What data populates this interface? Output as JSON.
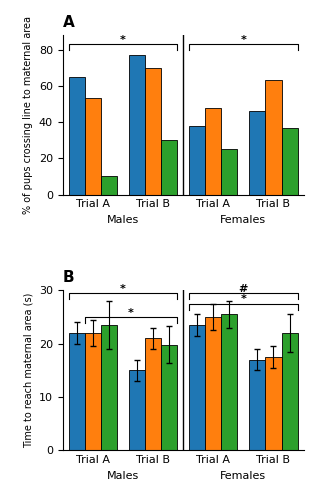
{
  "chart_data": [
    {
      "type": "bar",
      "title": "A",
      "ylabel": "% of pups crossing line to maternal area",
      "categories": [
        "Trial A",
        "Trial B",
        "Trial A",
        "Trial B"
      ],
      "series": [
        {
          "values": [
            65,
            77,
            38,
            46
          ]
        },
        {
          "values": [
            53,
            70,
            48,
            63
          ]
        },
        {
          "values": [
            10,
            30,
            25,
            37
          ]
        }
      ],
      "ylim": [
        0,
        88
      ],
      "yticks": [
        0,
        20,
        40,
        60,
        80
      ],
      "sections": [
        {
          "text": "Males",
          "categories": [
            0,
            1
          ]
        },
        {
          "text": "Females",
          "categories": [
            2,
            3
          ]
        }
      ],
      "brackets": [
        {
          "text": "*",
          "start": [
            0,
            0
          ],
          "end": [
            1,
            2
          ],
          "y": 83
        },
        {
          "text": "*",
          "start": [
            2,
            0
          ],
          "end": [
            3,
            2
          ],
          "y": 83
        }
      ]
    },
    {
      "type": "bar",
      "title": "B",
      "ylabel": "Time to reach maternal area (s)",
      "categories": [
        "Trial A",
        "Trial B",
        "Trial A",
        "Trial B"
      ],
      "series": [
        {
          "values": [
            22.0,
            15.0,
            23.5,
            17.0
          ],
          "errors": [
            2.0,
            2.0,
            2.0,
            2.0
          ]
        },
        {
          "values": [
            22.0,
            21.0,
            25.0,
            17.5
          ],
          "errors": [
            2.5,
            2.0,
            2.5,
            2.0
          ]
        },
        {
          "values": [
            23.5,
            19.8,
            25.5,
            22.0
          ],
          "errors": [
            4.5,
            3.5,
            2.5,
            3.5
          ]
        }
      ],
      "ylim": [
        0,
        30
      ],
      "yticks": [
        0,
        10,
        20,
        30
      ],
      "sections": [
        {
          "text": "Males",
          "categories": [
            0,
            1
          ]
        },
        {
          "text": "Females",
          "categories": [
            2,
            3
          ]
        }
      ],
      "brackets": [
        {
          "text": "*",
          "start": [
            0,
            0
          ],
          "end": [
            1,
            2
          ],
          "y": 29.5
        },
        {
          "text": "#",
          "start": [
            2,
            0
          ],
          "end": [
            3,
            2
          ],
          "y": 29.5
        },
        {
          "text": "*",
          "start": [
            2,
            0
          ],
          "end": [
            3,
            2
          ],
          "y": 27.5
        },
        {
          "text": "*",
          "start": [
            0,
            1
          ],
          "end": [
            1,
            2
          ],
          "y": 25.0
        }
      ]
    }
  ]
}
